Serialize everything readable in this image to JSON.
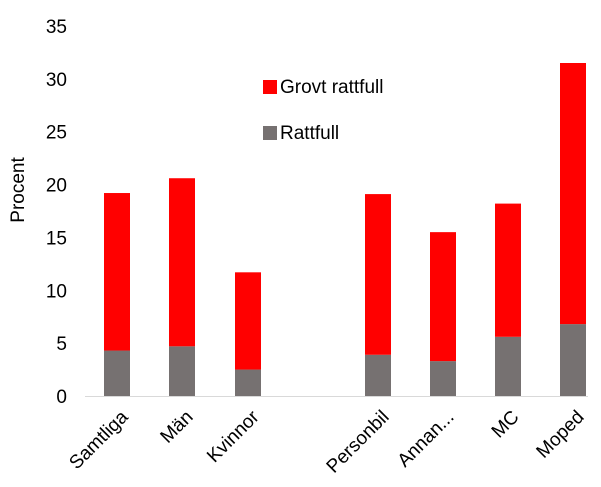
{
  "chart_data": {
    "type": "bar",
    "stacked": true,
    "categories": [
      "Samtliga",
      "Män",
      "Kvinnor",
      "",
      "Personbil",
      "Annan...",
      "MC",
      "Moped"
    ],
    "series": [
      {
        "name": "Rattfull",
        "color": "#767171",
        "values": [
          4.3,
          4.7,
          2.5,
          null,
          3.9,
          3.3,
          5.6,
          6.8
        ]
      },
      {
        "name": "Grovt rattfull",
        "color": "#ff0000",
        "values": [
          14.9,
          15.9,
          9.2,
          null,
          15.2,
          12.2,
          12.6,
          24.7
        ]
      }
    ],
    "xlabel": "",
    "ylabel": "Procent",
    "ylim": [
      0,
      35
    ],
    "yticks": [
      0,
      5,
      10,
      15,
      20,
      25,
      30,
      35
    ],
    "grid": false,
    "legend_position": "top-center",
    "legend_order": [
      "Grovt rattfull",
      "Rattfull"
    ]
  }
}
